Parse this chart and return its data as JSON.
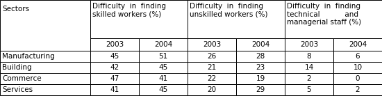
{
  "rows": [
    [
      "Manufacturing",
      "45",
      "51",
      "26",
      "28",
      "8",
      "6"
    ],
    [
      "Building",
      "42",
      "45",
      "21",
      "23",
      "14",
      "10"
    ],
    [
      "Commerce",
      "47",
      "41",
      "22",
      "19",
      "2",
      "0"
    ],
    [
      "Services",
      "41",
      "45",
      "20",
      "29",
      "5",
      "2"
    ]
  ],
  "header1_labels": [
    "Sectors",
    "Difficulty in finding\nskilled workers (%)",
    "Difficulty in finding\nunskilled workers (%)",
    "Difficulty in finding\ntechnical           and\nmanagerial staff (%)"
  ],
  "year_labels": [
    "2003",
    "2004",
    "2003",
    "2004",
    "2003",
    "2004"
  ],
  "background_color": "#ffffff",
  "border_color": "#000000",
  "font_size": 7.5
}
